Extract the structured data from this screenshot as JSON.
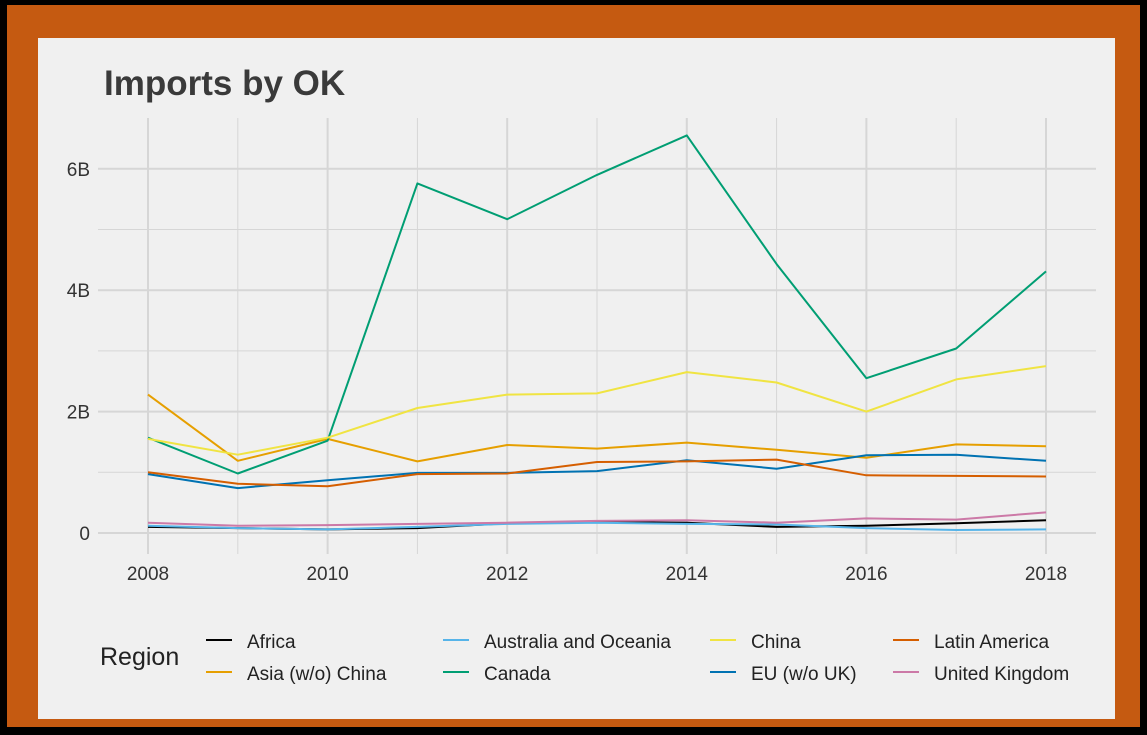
{
  "chart_data": {
    "type": "line",
    "title": "Imports by OK",
    "xlabel": "",
    "ylabel": "",
    "x": [
      2008,
      2009,
      2010,
      2011,
      2012,
      2013,
      2014,
      2015,
      2016,
      2017,
      2018
    ],
    "xticks": [
      2008,
      2010,
      2012,
      2014,
      2016,
      2018
    ],
    "yticks": [
      0,
      2,
      4,
      6
    ],
    "ytick_labels": [
      "0",
      "2B",
      "4B",
      "6B"
    ],
    "xlim": [
      2008,
      2018
    ],
    "ylim": [
      0,
      6.8
    ],
    "grid": true,
    "legend_title": "Region",
    "legend_position": "bottom",
    "units": "billions",
    "series": [
      {
        "name": "Africa",
        "color": "#000000",
        "values": [
          0.1,
          0.08,
          0.06,
          0.08,
          0.16,
          0.18,
          0.17,
          0.1,
          0.12,
          0.16,
          0.21
        ]
      },
      {
        "name": "Asia (w/o) China",
        "color": "#e69f00",
        "values": [
          2.28,
          1.19,
          1.55,
          1.18,
          1.45,
          1.39,
          1.49,
          1.37,
          1.24,
          1.46,
          1.43
        ]
      },
      {
        "name": "Australia and Oceania",
        "color": "#56b4e9",
        "values": [
          0.12,
          0.08,
          0.06,
          0.1,
          0.15,
          0.17,
          0.15,
          0.14,
          0.08,
          0.05,
          0.06
        ]
      },
      {
        "name": "Canada",
        "color": "#009e73",
        "values": [
          1.57,
          0.98,
          1.52,
          5.76,
          5.17,
          5.9,
          6.55,
          4.43,
          2.55,
          3.04,
          4.31
        ]
      },
      {
        "name": "China",
        "color": "#f0e442",
        "values": [
          1.55,
          1.29,
          1.57,
          2.06,
          2.28,
          2.3,
          2.65,
          2.48,
          2.0,
          2.53,
          2.75
        ]
      },
      {
        "name": "EU (w/o UK)",
        "color": "#0072b2",
        "values": [
          0.97,
          0.74,
          0.87,
          0.99,
          0.99,
          1.02,
          1.2,
          1.06,
          1.28,
          1.29,
          1.19
        ]
      },
      {
        "name": "Latin America",
        "color": "#d55e00",
        "values": [
          1.0,
          0.81,
          0.77,
          0.97,
          0.98,
          1.17,
          1.18,
          1.21,
          0.95,
          0.94,
          0.93
        ]
      },
      {
        "name": "United Kingdom",
        "color": "#cc79a7",
        "values": [
          0.17,
          0.12,
          0.13,
          0.15,
          0.17,
          0.2,
          0.21,
          0.17,
          0.24,
          0.22,
          0.34
        ]
      }
    ],
    "legend_rows": [
      [
        "Africa",
        "Australia and Oceania",
        "China",
        "Latin America"
      ],
      [
        "Asia (w/o) China",
        "Canada",
        "EU (w/o UK)",
        "United Kingdom"
      ]
    ]
  }
}
